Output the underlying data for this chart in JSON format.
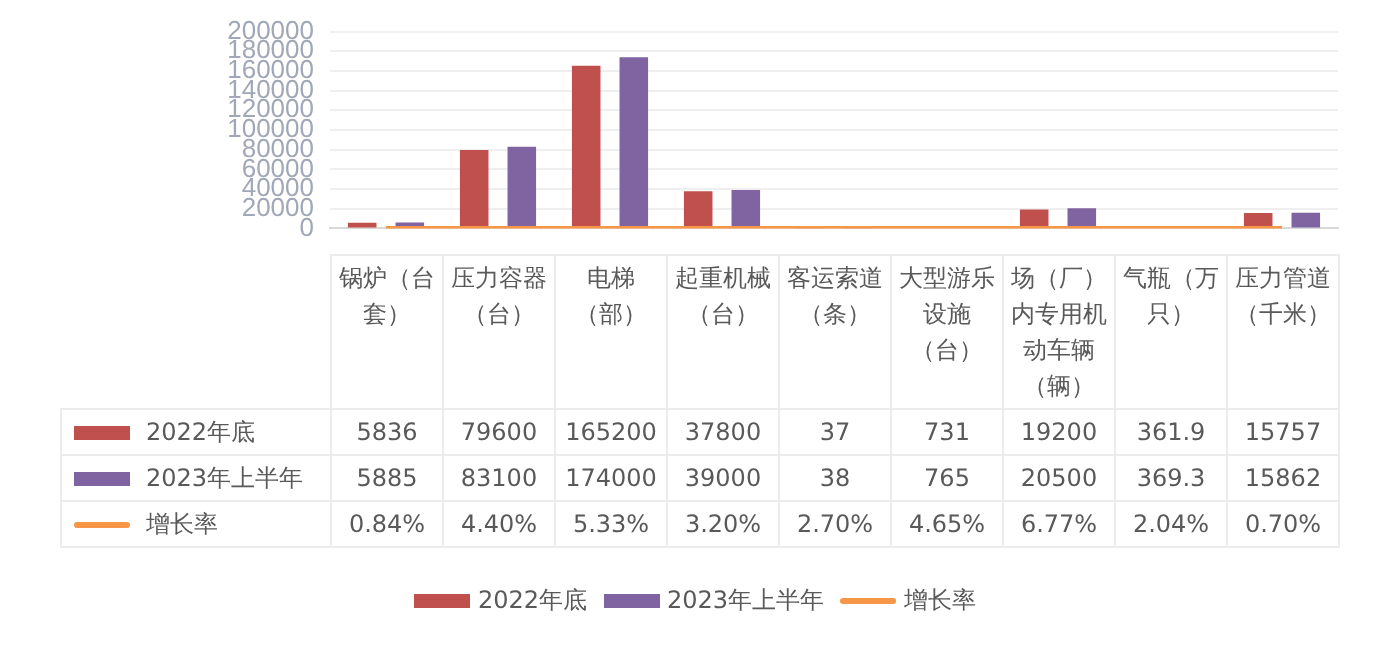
{
  "chart_data": {
    "type": "bar",
    "categories": [
      "锅炉（台套）",
      "压力容器（台）",
      "电梯（部）",
      "起重机械（台）",
      "客运索道（条）",
      "大型游乐设施（台）",
      "场（厂）内专用机动车辆（辆）",
      "气瓶（万只）",
      "压力管道（千米）"
    ],
    "series": [
      {
        "name": "2022年底",
        "color": "#c0504d",
        "values": [
          5836,
          79600,
          165200,
          37800,
          37,
          731,
          19200,
          361.9,
          15757
        ],
        "value_labels": [
          "5836",
          "79600",
          "165200",
          "37800",
          "37",
          "731",
          "19200",
          "361.9",
          "15757"
        ]
      },
      {
        "name": "2023年上半年",
        "color": "#8064a2",
        "values": [
          5885,
          83100,
          174000,
          39000,
          38,
          765,
          20500,
          369.3,
          15862
        ],
        "value_labels": [
          "5885",
          "83100",
          "174000",
          "39000",
          "38",
          "765",
          "20500",
          "369.3",
          "15862"
        ]
      },
      {
        "name": "增长率",
        "type": "line",
        "color": "#f79646",
        "values": [
          0.84,
          4.4,
          5.33,
          3.2,
          2.7,
          4.65,
          6.77,
          2.04,
          0.7
        ],
        "value_labels": [
          "0.84%",
          "4.40%",
          "5.33%",
          "3.20%",
          "2.70%",
          "4.65%",
          "6.77%",
          "2.04%",
          "0.70%"
        ]
      }
    ],
    "ylim": [
      0,
      200000
    ],
    "yticks": [
      0,
      20000,
      40000,
      60000,
      80000,
      100000,
      120000,
      140000,
      160000,
      180000,
      200000
    ],
    "grid": "y",
    "legend": "bottom"
  }
}
